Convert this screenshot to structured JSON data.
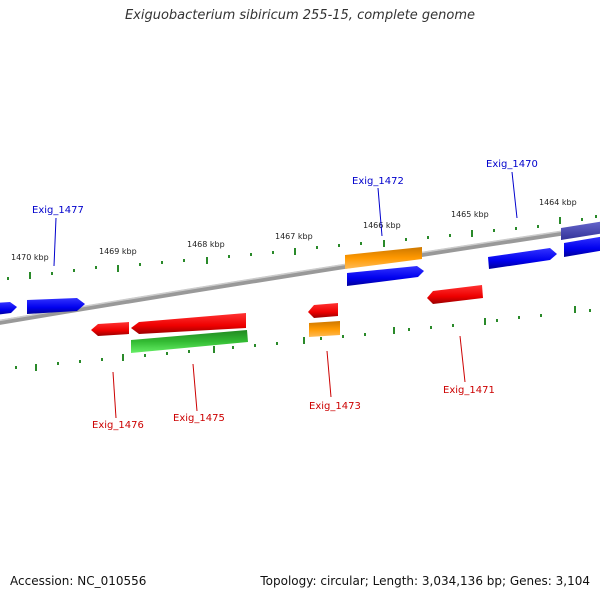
{
  "title": "Exiguobacterium sibiricum 255-15, complete genome",
  "footer": {
    "accession": "Accession: NC_010556",
    "summary": "Topology: circular; Length: 3,034,136 bp; Genes: 3,104"
  },
  "colors": {
    "forward_label": "#0000cc",
    "reverse_label": "#cc0000",
    "tick": "#2a8a2a",
    "backbone": "#808080"
  },
  "ticks": [
    "1470 kbp",
    "1469 kbp",
    "1468 kbp",
    "1467 kbp",
    "1466 kbp",
    "1465 kbp",
    "1464 kbp"
  ],
  "genes": {
    "exig_1477": "Exig_1477",
    "exig_1472": "Exig_1472",
    "exig_1470": "Exig_1470",
    "exig_1476": "Exig_1476",
    "exig_1475": "Exig_1475",
    "exig_1473": "Exig_1473",
    "exig_1471": "Exig_1471"
  }
}
